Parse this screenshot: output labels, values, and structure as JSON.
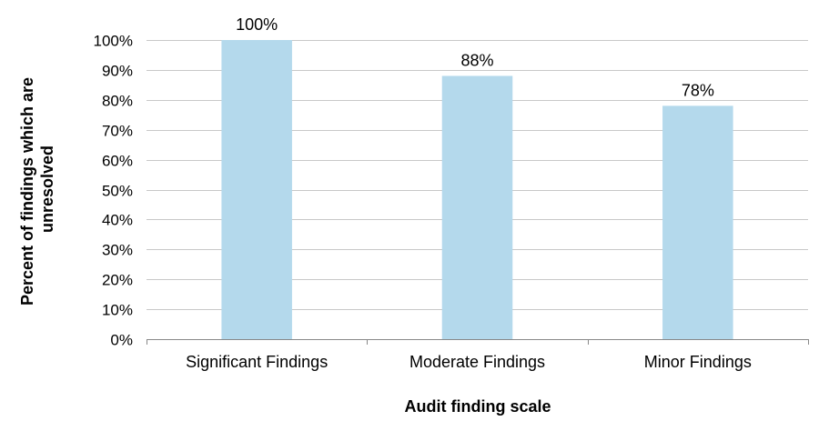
{
  "chart_data": {
    "type": "bar",
    "categories": [
      "Significant Findings",
      "Moderate Findings",
      "Minor Findings"
    ],
    "values": [
      100,
      88,
      78
    ],
    "data_labels": [
      "100%",
      "88%",
      "78%"
    ],
    "title": "",
    "xlabel": "Audit finding scale",
    "ylabel_lines": [
      "Percent of findings which are",
      "unresolved"
    ],
    "ylim": [
      0,
      100
    ],
    "yticks": [
      0,
      10,
      20,
      30,
      40,
      50,
      60,
      70,
      80,
      90,
      100
    ],
    "ytick_labels": [
      "0%",
      "10%",
      "20%",
      "30%",
      "40%",
      "50%",
      "60%",
      "70%",
      "80%",
      "90%",
      "100%"
    ],
    "grid": true,
    "legend": "none",
    "colors": {
      "bar": "#b4d9ec",
      "grid": "#c8c8c8",
      "axis": "#888888"
    }
  }
}
